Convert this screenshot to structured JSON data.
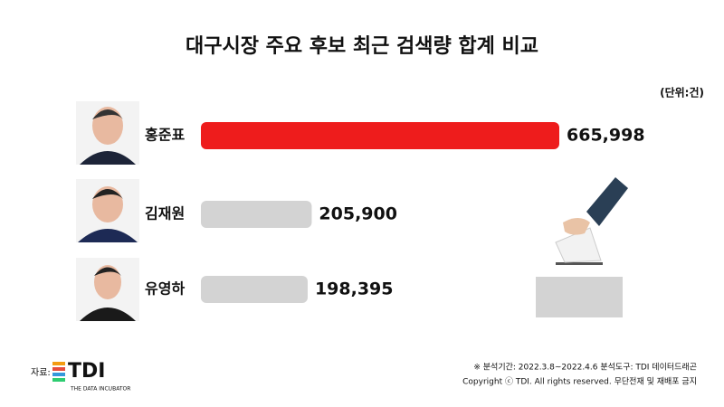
{
  "chart_data": {
    "type": "bar",
    "orientation": "horizontal",
    "title": "대구시장 주요 후보 최근 검색량 합계 비교",
    "unit": "(단위:건)",
    "categories": [
      "홍준표",
      "김재원",
      "유영하"
    ],
    "values": [
      665998,
      205900,
      198395
    ],
    "value_labels": [
      "665,998",
      "205,900",
      "198,395"
    ],
    "colors": [
      "#ee1c1c",
      "#d3d3d3",
      "#d3d3d3"
    ],
    "source_label": "자료:",
    "logo": "TDI",
    "logo_tagline": "THE DATA INCUBATOR",
    "notes": [
      "※ 분석기간: 2022.3.8~2022.4.6   분석도구: TDI 데이터드래곤",
      "Copyright ⓒ TDI. All rights reserved. 무단전재 및 재배포 금지"
    ]
  }
}
